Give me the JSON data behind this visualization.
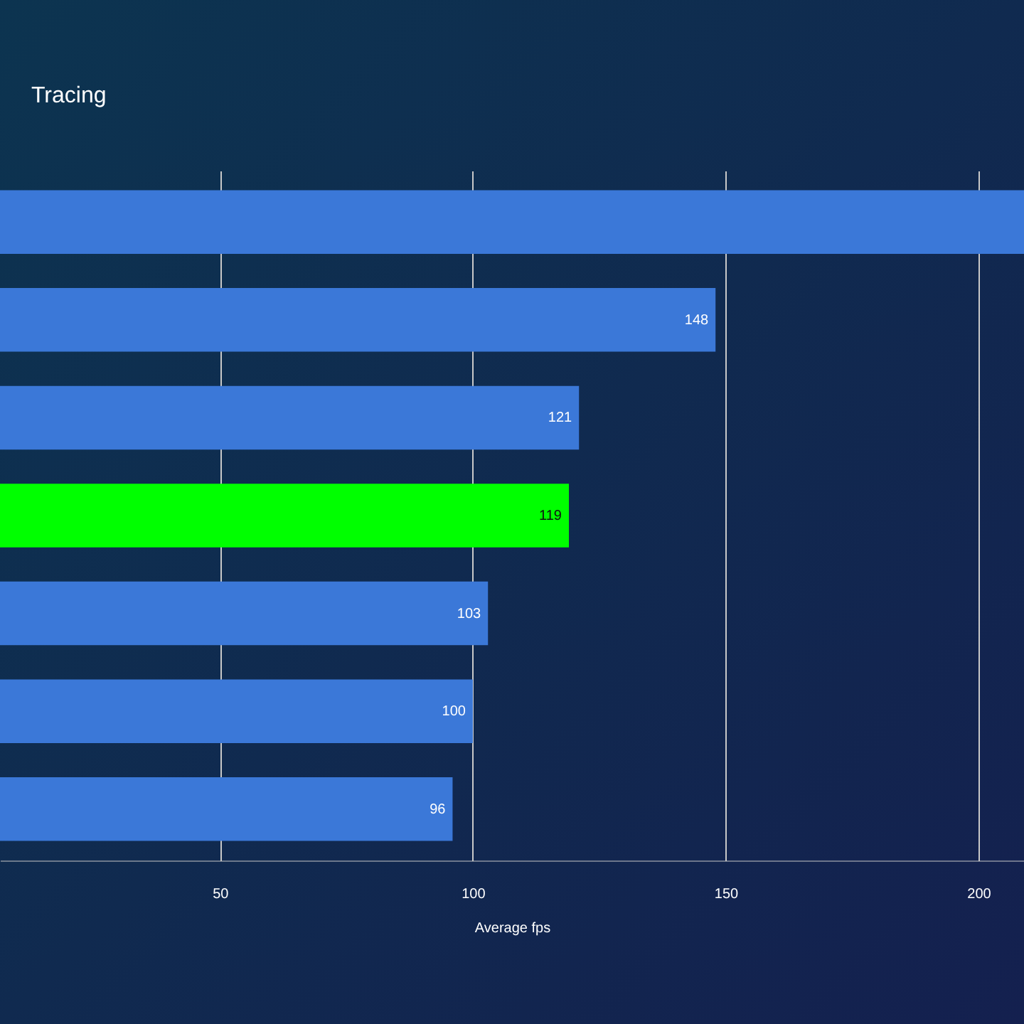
{
  "chart_data": {
    "type": "bar",
    "orientation": "horizontal",
    "title": "Tracing",
    "xlabel": "Average fps",
    "categories": [
      null,
      null,
      null,
      null,
      null,
      null,
      null
    ],
    "values": [
      209,
      148,
      121,
      119,
      103,
      100,
      96
    ],
    "value_labels": [
      null,
      "148",
      "121",
      "119",
      "103",
      "100",
      "96"
    ],
    "colors": [
      "#3b78d8",
      "#3b78d8",
      "#3b78d8",
      "#00ff00",
      "#3b78d8",
      "#3b78d8",
      "#3b78d8"
    ],
    "xlim": [
      6.5,
      209
    ],
    "xticks": [
      50,
      100,
      150,
      200
    ],
    "grid": "x"
  }
}
